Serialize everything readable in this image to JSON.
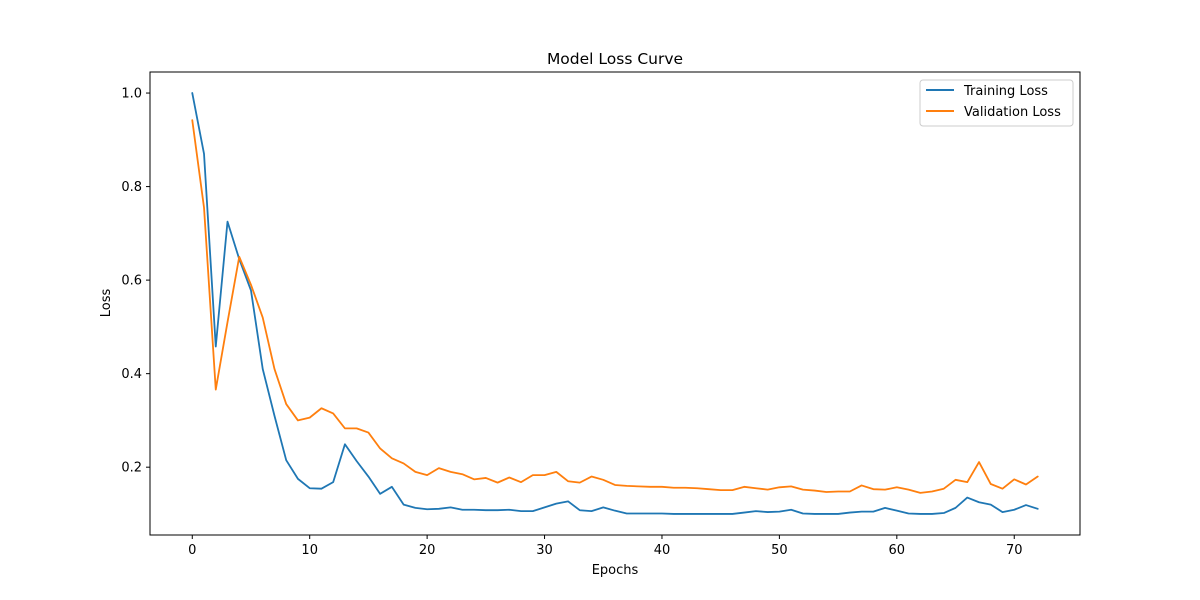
{
  "chart_data": {
    "type": "line",
    "title": "Model Loss Curve",
    "xlabel": "Epochs",
    "ylabel": "Loss",
    "xlim": [
      -3.6,
      75.6
    ],
    "ylim": [
      0.055,
      1.045
    ],
    "xticks": [
      0,
      10,
      20,
      30,
      40,
      50,
      60,
      70
    ],
    "yticks": [
      0.2,
      0.4,
      0.6,
      0.8,
      1.0
    ],
    "ytick_labels": [
      "0.2",
      "0.4",
      "0.6",
      "0.8",
      "1.0"
    ],
    "grid": false,
    "legend_position": "top-right",
    "x": [
      0,
      1,
      2,
      3,
      4,
      5,
      6,
      7,
      8,
      9,
      10,
      11,
      12,
      13,
      14,
      15,
      16,
      17,
      18,
      19,
      20,
      21,
      22,
      23,
      24,
      25,
      26,
      27,
      28,
      29,
      30,
      31,
      32,
      33,
      34,
      35,
      36,
      37,
      38,
      39,
      40,
      41,
      42,
      43,
      44,
      45,
      46,
      47,
      48,
      49,
      50,
      51,
      52,
      53,
      54,
      55,
      56,
      57,
      58,
      59,
      60,
      61,
      62,
      63,
      64,
      65,
      66,
      67,
      68,
      69,
      70,
      71,
      72
    ],
    "series": [
      {
        "name": "Training Loss",
        "color": "#1f77b4",
        "values": [
          1.0,
          0.87,
          0.458,
          0.725,
          0.645,
          0.578,
          0.41,
          0.31,
          0.215,
          0.175,
          0.155,
          0.154,
          0.168,
          0.249,
          0.213,
          0.18,
          0.143,
          0.158,
          0.12,
          0.113,
          0.11,
          0.111,
          0.114,
          0.109,
          0.109,
          0.108,
          0.108,
          0.109,
          0.106,
          0.106,
          0.114,
          0.122,
          0.127,
          0.108,
          0.106,
          0.114,
          0.107,
          0.101,
          0.101,
          0.101,
          0.101,
          0.1,
          0.1,
          0.1,
          0.1,
          0.1,
          0.1,
          0.103,
          0.106,
          0.104,
          0.105,
          0.109,
          0.101,
          0.1,
          0.1,
          0.1,
          0.103,
          0.105,
          0.105,
          0.113,
          0.107,
          0.101,
          0.1,
          0.1,
          0.102,
          0.113,
          0.135,
          0.125,
          0.12,
          0.104,
          0.109,
          0.119,
          0.111
        ]
      },
      {
        "name": "Validation Loss",
        "color": "#ff7f0e",
        "values": [
          0.942,
          0.755,
          0.366,
          0.51,
          0.65,
          0.59,
          0.52,
          0.41,
          0.335,
          0.3,
          0.306,
          0.326,
          0.315,
          0.283,
          0.283,
          0.274,
          0.24,
          0.219,
          0.208,
          0.19,
          0.183,
          0.198,
          0.19,
          0.185,
          0.174,
          0.177,
          0.167,
          0.178,
          0.168,
          0.183,
          0.183,
          0.19,
          0.17,
          0.167,
          0.18,
          0.173,
          0.162,
          0.16,
          0.159,
          0.158,
          0.158,
          0.156,
          0.156,
          0.155,
          0.153,
          0.151,
          0.151,
          0.158,
          0.155,
          0.152,
          0.157,
          0.159,
          0.152,
          0.15,
          0.147,
          0.148,
          0.148,
          0.161,
          0.153,
          0.152,
          0.157,
          0.152,
          0.145,
          0.148,
          0.154,
          0.173,
          0.168,
          0.211,
          0.164,
          0.154,
          0.174,
          0.163,
          0.18
        ]
      }
    ]
  }
}
